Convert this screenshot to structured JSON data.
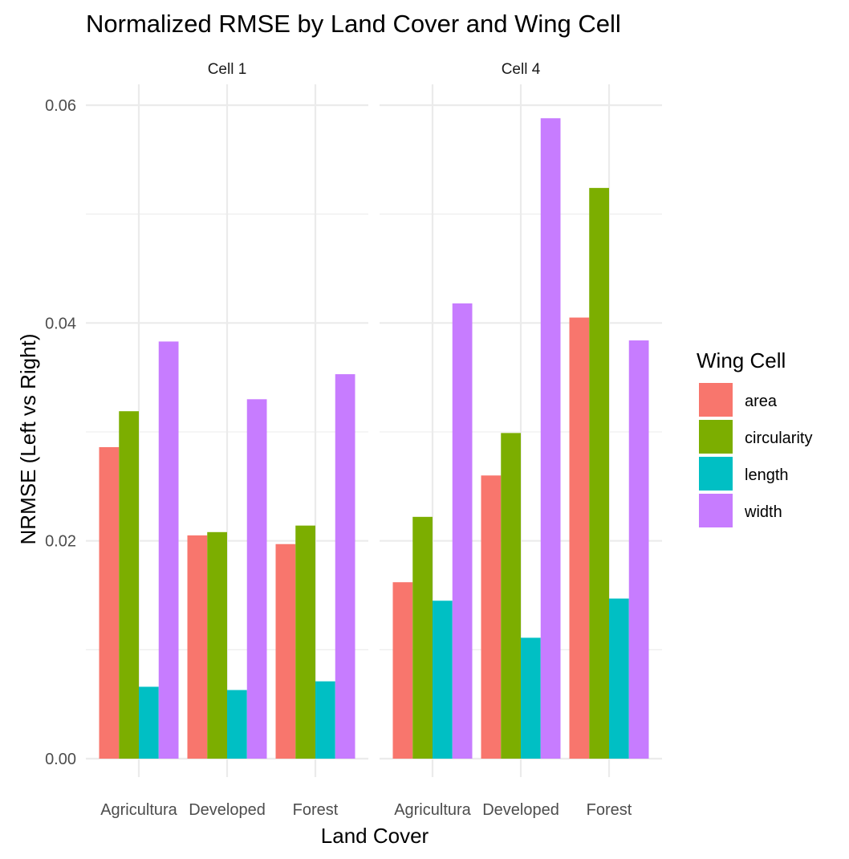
{
  "chart_data": {
    "type": "bar",
    "title": "Normalized RMSE by Land Cover and Wing Cell",
    "xlabel": "Land Cover",
    "ylabel": "NRMSE (Left vs Right)",
    "ylim": [
      0,
      0.06
    ],
    "y_ticks": [
      "0.00",
      "0.02",
      "0.04",
      "0.06"
    ],
    "grid": true,
    "legend": {
      "title": "Wing Cell",
      "position": "right",
      "entries": [
        {
          "name": "area",
          "color": "#F8766D"
        },
        {
          "name": "circularity",
          "color": "#7CAE00"
        },
        {
          "name": "length",
          "color": "#00BFC4"
        },
        {
          "name": "width",
          "color": "#C77CFF"
        }
      ]
    },
    "categories": [
      "Agricultura",
      "Developed",
      "Forest"
    ],
    "panels": [
      {
        "strip": "Cell 1",
        "series": [
          {
            "name": "area",
            "values": [
              0.0286,
              0.0205,
              0.0197
            ]
          },
          {
            "name": "circularity",
            "values": [
              0.0319,
              0.0208,
              0.0214
            ]
          },
          {
            "name": "length",
            "values": [
              0.0066,
              0.0063,
              0.0071
            ]
          },
          {
            "name": "width",
            "values": [
              0.0383,
              0.033,
              0.0353
            ]
          }
        ]
      },
      {
        "strip": "Cell 4",
        "series": [
          {
            "name": "area",
            "values": [
              0.0162,
              0.026,
              0.0405
            ]
          },
          {
            "name": "circularity",
            "values": [
              0.0222,
              0.0299,
              0.0524
            ]
          },
          {
            "name": "length",
            "values": [
              0.0145,
              0.0111,
              0.0147
            ]
          },
          {
            "name": "width",
            "values": [
              0.0418,
              0.0588,
              0.0384
            ]
          }
        ]
      }
    ]
  }
}
